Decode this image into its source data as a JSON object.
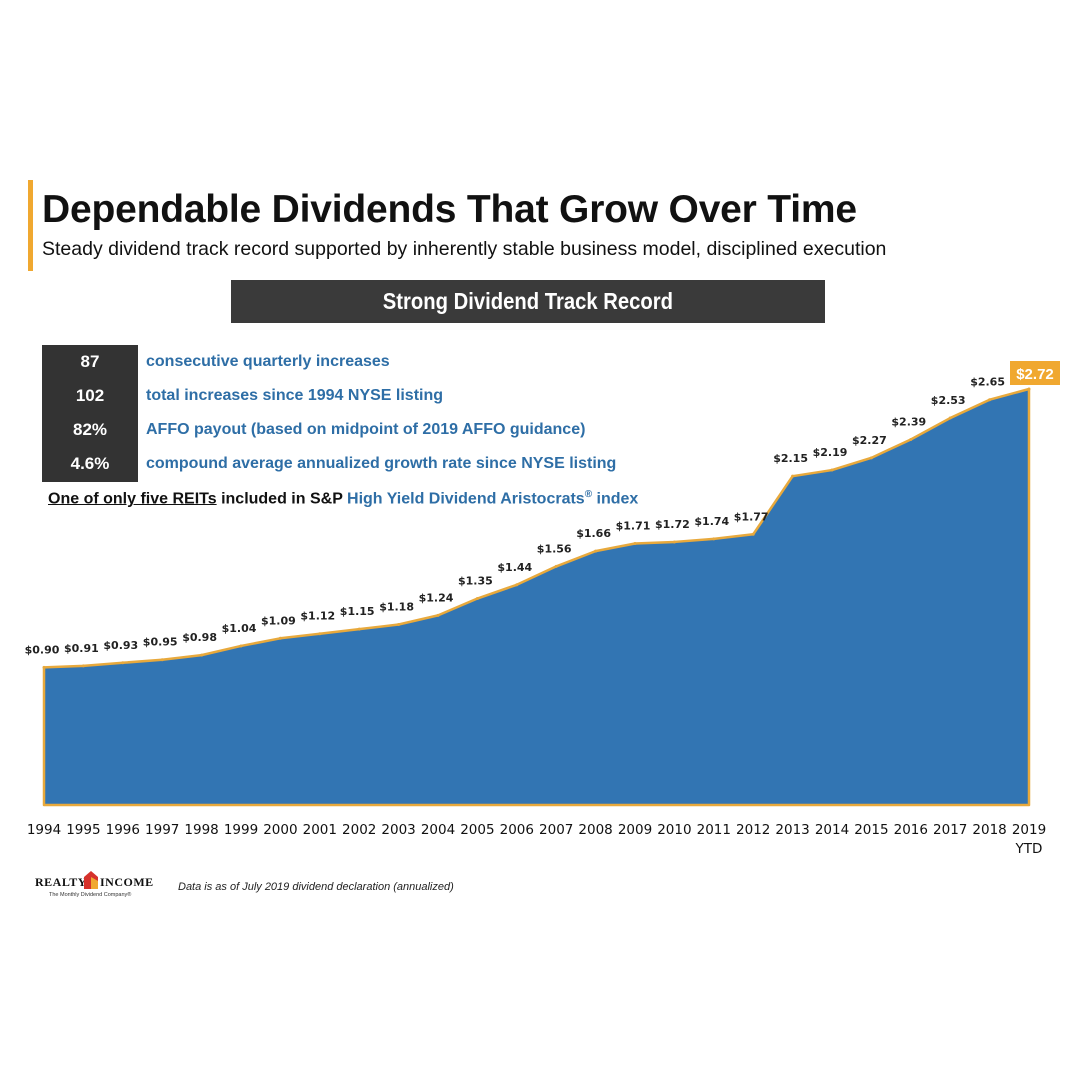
{
  "header": {
    "title": "Dependable Dividends That Grow Over Time",
    "subtitle": "Steady dividend track record supported by inherently stable business model, disciplined execution"
  },
  "banner": {
    "label": "Strong Dividend Track Record"
  },
  "stats": [
    {
      "value": "87",
      "label": "consecutive quarterly increases"
    },
    {
      "value": "102",
      "label": "total increases since 1994 NYSE listing"
    },
    {
      "value": "82%",
      "label": "AFFO payout (based on midpoint of 2019 AFFO guidance)"
    },
    {
      "value": "4.6%",
      "label": "compound average annualized growth rate since NYSE listing"
    }
  ],
  "aristocrat_note": {
    "underlined": "One of only five REITs",
    "middle": " included in S&P ",
    "highlight": "High Yield Dividend Aristocrats",
    "registered": "®",
    "suffix": " index"
  },
  "chart_data": {
    "type": "area",
    "x": [
      "1994",
      "1995",
      "1996",
      "1997",
      "1998",
      "1999",
      "2000",
      "2001",
      "2002",
      "2003",
      "2004",
      "2005",
      "2006",
      "2007",
      "2008",
      "2009",
      "2010",
      "2011",
      "2012",
      "2013",
      "2014",
      "2015",
      "2016",
      "2017",
      "2018",
      "2019"
    ],
    "x_sublabels": {
      "2019": "YTD"
    },
    "series": [
      {
        "values": [
          0.9,
          0.91,
          0.93,
          0.95,
          0.98,
          1.04,
          1.09,
          1.12,
          1.15,
          1.18,
          1.24,
          1.35,
          1.44,
          1.56,
          1.66,
          1.71,
          1.72,
          1.74,
          1.77,
          2.15,
          2.19,
          2.27,
          2.39,
          2.53,
          2.65,
          2.72
        ],
        "labels": [
          "$0.90",
          "$0.91",
          "$0.93",
          "$0.95",
          "$0.98",
          "$1.04",
          "$1.09",
          "$1.12",
          "$1.15",
          "$1.18",
          "$1.24",
          "$1.35",
          "$1.44",
          "$1.56",
          "$1.66",
          "$1.71",
          "$1.72",
          "$1.74",
          "$1.77",
          "$2.15",
          "$2.19",
          "$2.27",
          "$2.39",
          "$2.53",
          "$2.65",
          "$2.72"
        ]
      }
    ],
    "highlight_last": true,
    "grid": false,
    "legend": "none",
    "colors": {
      "fill": "#3275b3",
      "stroke": "#e8a93c",
      "highlight_bg": "#f0a830",
      "highlight_text": "#ffffff"
    }
  },
  "logo": {
    "left": "REALTY",
    "right": "INCOME",
    "tagline": "The Monthly Dividend Company®"
  },
  "footnote": "Data is as of July 2019 dividend declaration (annualized)"
}
